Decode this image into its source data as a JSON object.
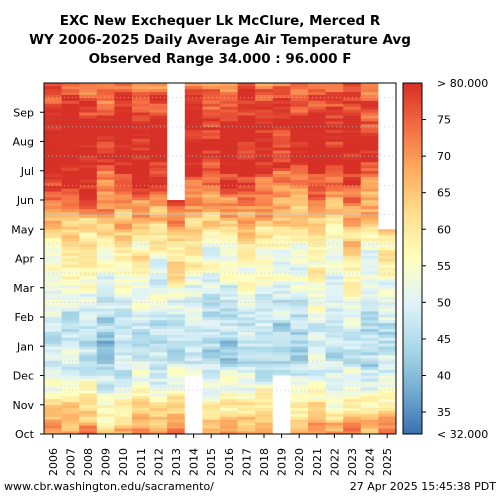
{
  "chart_data": {
    "type": "heatmap",
    "title": [
      "EXC New Exchequer Lk McClure, Merced R",
      "WY 2006-2025 Daily Average Air Temperature Avg",
      "Observed Range 34.000 : 96.000 F"
    ],
    "x_categories": [
      "2006",
      "2007",
      "2008",
      "2009",
      "2010",
      "2011",
      "2012",
      "2013",
      "2014",
      "2015",
      "2016",
      "2017",
      "2018",
      "2019",
      "2020",
      "2021",
      "2022",
      "2023",
      "2024",
      "2025"
    ],
    "y_month_labels": [
      "Oct",
      "Nov",
      "Dec",
      "Jan",
      "Feb",
      "Mar",
      "Apr",
      "May",
      "Jun",
      "Jul",
      "Aug",
      "Sep"
    ],
    "value_unit": "F",
    "monthly_typical_values": {
      "Oct": 64,
      "Nov": 54,
      "Dec": 47,
      "Jan": 46,
      "Feb": 50,
      "Mar": 54,
      "Apr": 59,
      "May": 67,
      "Jun": 76,
      "Jul": 82,
      "Aug": 81,
      "Sep": 76
    },
    "missing_data_periods": [
      {
        "year": "2013",
        "from": "Jun",
        "to": "Sep"
      },
      {
        "year": "2014",
        "from": "Oct",
        "to": "Nov"
      },
      {
        "year": "2019",
        "from": "Oct",
        "to": "Nov"
      },
      {
        "year": "2025",
        "from": "May",
        "to": "Sep"
      }
    ],
    "colorbar": {
      "min": 32,
      "max": 80,
      "ticks": [
        "35",
        "40",
        "45",
        "50",
        "55",
        "60",
        "65",
        "70",
        "75"
      ],
      "low_label": "< 32.000",
      "high_label": "> 80.000",
      "colors": [
        "#3a6fb0",
        "#74add1",
        "#abd9e9",
        "#e0f3f8",
        "#ffffbf",
        "#fee090",
        "#fdae61",
        "#f46d43",
        "#d73027"
      ]
    },
    "grid": true
  },
  "footer": {
    "source": "www.cbr.washington.edu/sacramento/",
    "timestamp": "27 Apr 2025 15:45:38 PDT"
  }
}
